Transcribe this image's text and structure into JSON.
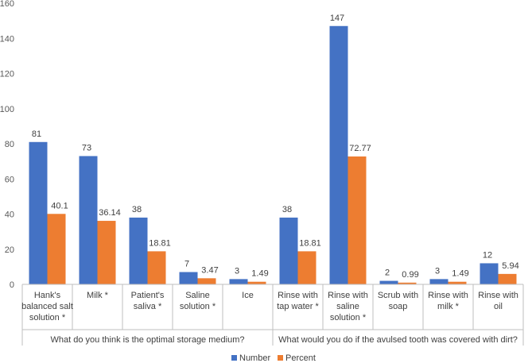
{
  "chart_data": {
    "type": "bar",
    "ylim": [
      0,
      160
    ],
    "yticks": [
      0,
      20,
      40,
      60,
      80,
      100,
      120,
      140,
      160
    ],
    "grid": false,
    "legend_position": "bottom",
    "colors": {
      "number": "#4472c4",
      "percent": "#ed7d31"
    },
    "series": [
      {
        "name": "Number",
        "values": [
          81,
          73,
          38,
          7,
          3,
          38,
          147,
          2,
          3,
          12
        ],
        "labels": [
          "81",
          "73",
          "38",
          "7",
          "3",
          "38",
          "147",
          "2",
          "3",
          "12"
        ]
      },
      {
        "name": "Percent",
        "values": [
          40.1,
          36.14,
          18.81,
          3.47,
          1.49,
          18.81,
          72.77,
          0.99,
          1.49,
          5.94
        ],
        "labels": [
          "40.1",
          "36.14",
          "18.81",
          "3.47",
          "1.49",
          "18.81",
          "72.77",
          "0.99",
          "1.49",
          "5.94"
        ]
      }
    ],
    "categories": [
      [
        "Hank's",
        "balanced salt",
        "solution *"
      ],
      [
        "Milk *"
      ],
      [
        "Patient's",
        "saliva *"
      ],
      [
        "Saline",
        "solution *"
      ],
      [
        "Ice"
      ],
      [
        "Rinse with",
        "tap water *"
      ],
      [
        "Rinse with",
        "saline",
        "solution *"
      ],
      [
        "Scrub with",
        "soap"
      ],
      [
        "Rinse with",
        "milk *"
      ],
      [
        "Rinse with",
        "oil"
      ]
    ],
    "groups": [
      {
        "label": "What do you think is the optimal storage medium?",
        "start": 0,
        "end": 4
      },
      {
        "label": "What would you do if the avulsed tooth was covered with dirt?",
        "start": 5,
        "end": 9
      }
    ]
  }
}
